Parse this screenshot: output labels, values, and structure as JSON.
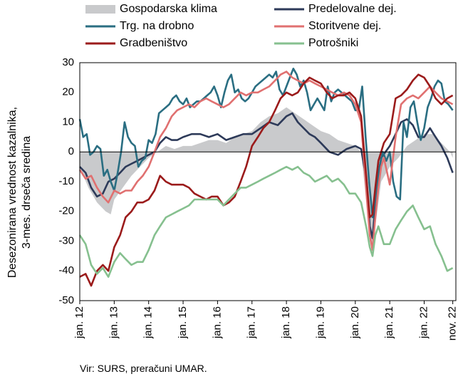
{
  "chart_data": {
    "type": "line",
    "ylabel_lines": [
      "Desezonirana vrednost kazalnika,",
      "3-mes. drseča sredina"
    ],
    "ylim": [
      -50,
      30
    ],
    "yticks": [
      30,
      20,
      10,
      0,
      -10,
      -20,
      -30,
      -40,
      -50
    ],
    "xlim": [
      2012.0,
      2022.92
    ],
    "xticks": [
      {
        "label": "jan. 12",
        "t": 2012.0
      },
      {
        "label": "jan. 13",
        "t": 2013.0
      },
      {
        "label": "jan. 14",
        "t": 2014.0
      },
      {
        "label": "jan. 15",
        "t": 2015.0
      },
      {
        "label": "jan. 16",
        "t": 2016.0
      },
      {
        "label": "jan. 17",
        "t": 2017.0
      },
      {
        "label": "jan. 18",
        "t": 2018.0
      },
      {
        "label": "jan. 19",
        "t": 2019.0
      },
      {
        "label": "jan. 20",
        "t": 2020.0
      },
      {
        "label": "jan. 21",
        "t": 2021.0
      },
      {
        "label": "jan. 22",
        "t": 2022.0
      },
      {
        "label": "nov. 22",
        "t": 2022.83
      }
    ],
    "source": "Vir: SURS, preračuni UMAR.",
    "series": [
      {
        "name": "Gospodarska klima",
        "kind": "area",
        "color": "#c9cacc",
        "x": [
          2012.0,
          2012.25,
          2012.5,
          2012.75,
          2012.9,
          2013.0,
          2013.25,
          2013.5,
          2013.75,
          2014.0,
          2014.25,
          2014.5,
          2014.75,
          2015.0,
          2015.25,
          2015.5,
          2015.75,
          2016.0,
          2016.25,
          2016.5,
          2016.75,
          2017.0,
          2017.25,
          2017.5,
          2017.75,
          2018.0,
          2018.25,
          2018.5,
          2018.75,
          2019.0,
          2019.25,
          2019.5,
          2019.75,
          2020.0,
          2020.17,
          2020.33,
          2020.42,
          2020.5,
          2020.58,
          2020.75,
          2021.0,
          2021.25,
          2021.5,
          2021.75,
          2022.0,
          2022.25,
          2022.5,
          2022.75,
          2022.83
        ],
        "values": [
          -5,
          -12,
          -17,
          -20,
          -21,
          -16,
          -12,
          -8,
          -5,
          -2,
          0,
          2,
          1,
          2,
          2,
          3,
          4,
          4,
          3,
          5,
          6,
          7,
          10,
          12,
          13,
          15,
          13,
          11,
          9,
          7,
          6,
          4,
          3,
          2,
          0,
          -18,
          -30,
          -32,
          -25,
          -10,
          -5,
          -2,
          2,
          4,
          6,
          6,
          3,
          0,
          -2
        ]
      },
      {
        "name": "Predelovalne dej.",
        "kind": "line",
        "color": "#2d3a59",
        "x": [
          2012.0,
          2012.17,
          2012.33,
          2012.5,
          2012.67,
          2012.83,
          2013.0,
          2013.17,
          2013.33,
          2013.5,
          2013.67,
          2013.83,
          2014.0,
          2014.17,
          2014.33,
          2014.5,
          2014.67,
          2014.83,
          2015.0,
          2015.25,
          2015.5,
          2015.75,
          2016.0,
          2016.25,
          2016.5,
          2016.75,
          2017.0,
          2017.25,
          2017.5,
          2017.75,
          2018.0,
          2018.17,
          2018.33,
          2018.5,
          2018.67,
          2018.83,
          2019.0,
          2019.25,
          2019.5,
          2019.75,
          2020.0,
          2020.17,
          2020.33,
          2020.42,
          2020.5,
          2020.58,
          2020.67,
          2020.75,
          2021.0,
          2021.17,
          2021.33,
          2021.5,
          2021.67,
          2021.83,
          2022.0,
          2022.17,
          2022.33,
          2022.5,
          2022.67,
          2022.83
        ],
        "values": [
          -5,
          -7,
          -12,
          -15,
          -14,
          -10,
          -9,
          -7,
          -5,
          -4,
          -3,
          -2,
          -1,
          0,
          3,
          5,
          4,
          4,
          5,
          6,
          6,
          5,
          6,
          4,
          5,
          6,
          6,
          8,
          10,
          9,
          12,
          13,
          10,
          8,
          6,
          5,
          3,
          0,
          -1,
          1,
          2,
          1,
          -10,
          -25,
          -29,
          -18,
          -8,
          -2,
          2,
          6,
          10,
          11,
          9,
          5,
          5,
          8,
          5,
          2,
          -2,
          -7
        ]
      },
      {
        "name": "Trg. na drobno",
        "kind": "line",
        "color": "#2a6e82",
        "x": [
          2012.0,
          2012.1,
          2012.2,
          2012.3,
          2012.4,
          2012.5,
          2012.6,
          2012.7,
          2012.8,
          2012.9,
          2013.0,
          2013.1,
          2013.2,
          2013.3,
          2013.4,
          2013.5,
          2013.6,
          2013.7,
          2013.8,
          2013.9,
          2014.0,
          2014.1,
          2014.2,
          2014.3,
          2014.4,
          2014.5,
          2014.6,
          2014.7,
          2014.8,
          2014.9,
          2015.0,
          2015.1,
          2015.2,
          2015.3,
          2015.4,
          2015.5,
          2015.6,
          2015.7,
          2015.8,
          2015.9,
          2016.0,
          2016.1,
          2016.2,
          2016.3,
          2016.4,
          2016.5,
          2016.6,
          2016.7,
          2016.8,
          2016.9,
          2017.0,
          2017.1,
          2017.2,
          2017.3,
          2017.4,
          2017.5,
          2017.6,
          2017.7,
          2017.8,
          2017.9,
          2018.0,
          2018.1,
          2018.2,
          2018.3,
          2018.4,
          2018.5,
          2018.6,
          2018.7,
          2018.8,
          2018.9,
          2019.0,
          2019.1,
          2019.2,
          2019.3,
          2019.4,
          2019.5,
          2019.6,
          2019.7,
          2019.8,
          2019.9,
          2020.0,
          2020.1,
          2020.2,
          2020.3,
          2020.4,
          2020.5,
          2020.6,
          2020.7,
          2020.8,
          2020.9,
          2021.0,
          2021.1,
          2021.2,
          2021.3,
          2021.4,
          2021.5,
          2021.6,
          2021.7,
          2021.8,
          2021.9,
          2022.0,
          2022.1,
          2022.2,
          2022.3,
          2022.4,
          2022.5,
          2022.6,
          2022.7,
          2022.83
        ],
        "values": [
          11,
          5,
          6,
          -1,
          0,
          2,
          1,
          -8,
          -6,
          -10,
          -13,
          -7,
          0,
          10,
          5,
          3,
          2,
          -5,
          -3,
          -2,
          4,
          3,
          6,
          13,
          14,
          15,
          16,
          18,
          19,
          17,
          16,
          18,
          15,
          16,
          17,
          17,
          18,
          19,
          20,
          22,
          19,
          15,
          20,
          24,
          26,
          20,
          21,
          18,
          17,
          18,
          20,
          22,
          23,
          24,
          25,
          26,
          25,
          27,
          21,
          19,
          22,
          25,
          28,
          26,
          22,
          24,
          20,
          14,
          16,
          18,
          16,
          14,
          22,
          17,
          20,
          21,
          20,
          19,
          18,
          17,
          14,
          14,
          22,
          5,
          -10,
          -22,
          -15,
          -5,
          0,
          -3,
          0,
          -10,
          -15,
          -16,
          10,
          5,
          15,
          17,
          10,
          4,
          8,
          15,
          18,
          22,
          24,
          23,
          17,
          16,
          14
        ]
      },
      {
        "name": "Storitvene dej.",
        "kind": "line",
        "color": "#e07070",
        "x": [
          2012.0,
          2012.17,
          2012.33,
          2012.5,
          2012.67,
          2012.83,
          2013.0,
          2013.17,
          2013.33,
          2013.5,
          2013.67,
          2013.83,
          2014.0,
          2014.17,
          2014.33,
          2014.5,
          2014.67,
          2014.83,
          2015.0,
          2015.17,
          2015.33,
          2015.5,
          2015.67,
          2015.83,
          2016.0,
          2016.17,
          2016.33,
          2016.5,
          2016.67,
          2016.83,
          2017.0,
          2017.17,
          2017.33,
          2017.5,
          2017.67,
          2017.83,
          2018.0,
          2018.17,
          2018.33,
          2018.5,
          2018.67,
          2018.83,
          2019.0,
          2019.17,
          2019.33,
          2019.5,
          2019.67,
          2019.83,
          2020.0,
          2020.17,
          2020.33,
          2020.42,
          2020.5,
          2020.58,
          2020.67,
          2020.75,
          2020.83,
          2021.0,
          2021.17,
          2021.33,
          2021.5,
          2021.67,
          2021.83,
          2022.0,
          2022.17,
          2022.33,
          2022.5,
          2022.67,
          2022.83
        ],
        "values": [
          -6,
          -9,
          -8,
          -12,
          -15,
          -17,
          -13,
          -14,
          -13,
          -13,
          -10,
          -8,
          -5,
          0,
          5,
          8,
          12,
          14,
          15,
          16,
          15,
          17,
          18,
          17,
          16,
          15,
          16,
          18,
          20,
          19,
          20,
          20,
          21,
          22,
          24,
          26,
          27,
          25,
          24,
          23,
          24,
          23,
          22,
          21,
          20,
          19,
          20,
          19,
          16,
          10,
          -15,
          -28,
          -33,
          -22,
          -12,
          -5,
          -2,
          -11,
          5,
          16,
          18,
          19,
          18,
          20,
          22,
          20,
          18,
          17,
          16
        ]
      },
      {
        "name": "Gradbeništvo",
        "kind": "line",
        "color": "#9b1b1b",
        "x": [
          2012.0,
          2012.17,
          2012.33,
          2012.5,
          2012.67,
          2012.83,
          2013.0,
          2013.17,
          2013.33,
          2013.5,
          2013.67,
          2013.83,
          2014.0,
          2014.17,
          2014.33,
          2014.5,
          2014.67,
          2014.83,
          2015.0,
          2015.17,
          2015.33,
          2015.5,
          2015.67,
          2015.83,
          2016.0,
          2016.17,
          2016.33,
          2016.5,
          2016.67,
          2016.83,
          2017.0,
          2017.17,
          2017.33,
          2017.5,
          2017.67,
          2017.83,
          2018.0,
          2018.17,
          2018.33,
          2018.5,
          2018.67,
          2018.83,
          2019.0,
          2019.17,
          2019.33,
          2019.5,
          2019.67,
          2019.83,
          2020.0,
          2020.17,
          2020.33,
          2020.42,
          2020.5,
          2020.58,
          2020.67,
          2020.75,
          2020.83,
          2021.0,
          2021.17,
          2021.33,
          2021.5,
          2021.67,
          2021.83,
          2022.0,
          2022.17,
          2022.33,
          2022.5,
          2022.67,
          2022.83
        ],
        "values": [
          -42,
          -41,
          -45,
          -40,
          -38,
          -40,
          -32,
          -28,
          -22,
          -20,
          -17,
          -17,
          -16,
          -13,
          -8,
          -10,
          -11,
          -11,
          -11,
          -12,
          -14,
          -15,
          -16,
          -15,
          -15,
          -18,
          -17,
          -15,
          -10,
          -5,
          2,
          5,
          8,
          10,
          14,
          18,
          20,
          19,
          20,
          23,
          25,
          24,
          23,
          20,
          18,
          19,
          19,
          20,
          18,
          12,
          -10,
          -22,
          -21,
          -12,
          -3,
          0,
          3,
          6,
          18,
          19,
          21,
          24,
          26,
          25,
          22,
          18,
          16,
          18,
          19
        ]
      },
      {
        "name": "Potrošniki",
        "kind": "line",
        "color": "#86c08f",
        "x": [
          2012.0,
          2012.17,
          2012.33,
          2012.5,
          2012.67,
          2012.83,
          2013.0,
          2013.17,
          2013.33,
          2013.5,
          2013.67,
          2013.83,
          2014.0,
          2014.17,
          2014.33,
          2014.5,
          2014.67,
          2014.83,
          2015.0,
          2015.17,
          2015.33,
          2015.5,
          2015.67,
          2015.83,
          2016.0,
          2016.17,
          2016.33,
          2016.5,
          2016.67,
          2016.83,
          2017.0,
          2017.17,
          2017.33,
          2017.5,
          2017.67,
          2017.83,
          2018.0,
          2018.17,
          2018.33,
          2018.5,
          2018.67,
          2018.83,
          2019.0,
          2019.17,
          2019.33,
          2019.5,
          2019.67,
          2019.83,
          2020.0,
          2020.17,
          2020.33,
          2020.42,
          2020.5,
          2020.58,
          2020.67,
          2020.75,
          2020.83,
          2021.0,
          2021.17,
          2021.33,
          2021.5,
          2021.67,
          2021.83,
          2022.0,
          2022.17,
          2022.33,
          2022.5,
          2022.67,
          2022.83
        ],
        "values": [
          -28,
          -31,
          -38,
          -41,
          -39,
          -42,
          -37,
          -34,
          -36,
          -38,
          -37,
          -37,
          -33,
          -28,
          -25,
          -22,
          -21,
          -20,
          -19,
          -18,
          -16,
          -16,
          -16,
          -16,
          -16,
          -18,
          -16,
          -14,
          -12,
          -12,
          -11,
          -10,
          -9,
          -8,
          -7,
          -6,
          -5,
          -6,
          -5,
          -7,
          -8,
          -10,
          -9,
          -8,
          -10,
          -9,
          -11,
          -14,
          -14,
          -17,
          -26,
          -32,
          -35,
          -28,
          -25,
          -28,
          -31,
          -31,
          -26,
          -23,
          -20,
          -18,
          -22,
          -26,
          -25,
          -31,
          -35,
          -40,
          -39
        ]
      }
    ]
  }
}
